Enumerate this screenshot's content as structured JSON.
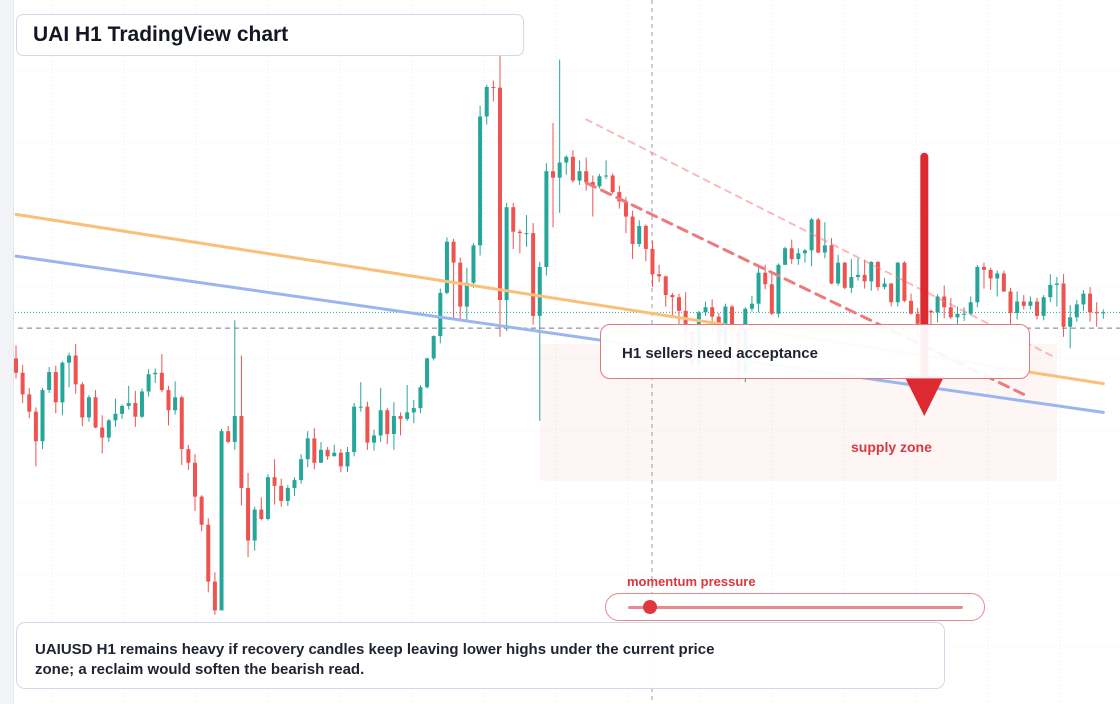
{
  "title": "UAI H1 TradingView chart",
  "annotation": "H1 sellers need acceptance",
  "zone_label": "supply zone",
  "meter": {
    "label": "momentum pressure",
    "level": 0.05
  },
  "caption": "UAIUSD H1 remains heavy if recovery candles keep leaving lower highs under the current price zone; a reclaim would soften the bearish read.",
  "colors": {
    "up": "#26a69a",
    "down": "#ef5350",
    "accent": "#dd2a31",
    "orange_line": "#f8c078",
    "blue_line": "#9bb5f1",
    "trend_dashed": "#ec7a7f"
  },
  "chart_data": {
    "type": "candlestick",
    "symbol": "UAIUSD",
    "timeframe": "H1",
    "candles": [
      {
        "o": 48.0,
        "h": 49.8,
        "c": 46.0,
        "l": 45.2
      },
      {
        "o": 46.0,
        "h": 47.1,
        "c": 43.0,
        "l": 41.8
      },
      {
        "o": 43.0,
        "h": 43.9,
        "c": 40.6,
        "l": 39.7
      },
      {
        "o": 40.6,
        "h": 41.2,
        "c": 36.5,
        "l": 33.0
      },
      {
        "o": 36.5,
        "h": 43.9,
        "c": 43.6,
        "l": 35.4
      },
      {
        "o": 43.6,
        "h": 46.8,
        "c": 46.1,
        "l": 43.2
      },
      {
        "o": 46.1,
        "h": 47.0,
        "c": 41.9,
        "l": 40.4
      },
      {
        "o": 41.9,
        "h": 47.6,
        "c": 47.4,
        "l": 40.1
      },
      {
        "o": 47.4,
        "h": 48.8,
        "c": 48.4,
        "l": 44.0
      },
      {
        "o": 48.4,
        "h": 50.0,
        "c": 44.4,
        "l": 43.1
      },
      {
        "o": 44.4,
        "h": 44.7,
        "c": 39.8,
        "l": 38.6
      },
      {
        "o": 39.8,
        "h": 42.9,
        "c": 42.6,
        "l": 39.2
      },
      {
        "o": 42.6,
        "h": 43.6,
        "c": 38.4,
        "l": 38.3
      },
      {
        "o": 38.4,
        "h": 40.1,
        "c": 37.0,
        "l": 34.8
      },
      {
        "o": 37.0,
        "h": 39.6,
        "c": 39.4,
        "l": 36.4
      },
      {
        "o": 39.4,
        "h": 42.4,
        "c": 40.3,
        "l": 38.5
      },
      {
        "o": 40.3,
        "h": 41.6,
        "c": 41.4,
        "l": 39.6
      },
      {
        "o": 41.4,
        "h": 44.2,
        "c": 41.8,
        "l": 40.9
      },
      {
        "o": 41.8,
        "h": 43.5,
        "c": 39.9,
        "l": 38.5
      },
      {
        "o": 39.9,
        "h": 43.8,
        "c": 43.4,
        "l": 39.7
      },
      {
        "o": 43.4,
        "h": 46.5,
        "c": 45.8,
        "l": 42.7
      },
      {
        "o": 45.8,
        "h": 46.6,
        "c": 46.0,
        "l": 44.6
      },
      {
        "o": 46.0,
        "h": 48.6,
        "c": 43.6,
        "l": 43.3
      },
      {
        "o": 43.6,
        "h": 44.2,
        "c": 40.8,
        "l": 38.7
      },
      {
        "o": 40.8,
        "h": 44.8,
        "c": 42.6,
        "l": 40.2
      },
      {
        "o": 42.6,
        "h": 42.8,
        "c": 35.4,
        "l": 33.2
      },
      {
        "o": 35.4,
        "h": 36.0,
        "c": 33.5,
        "l": 32.5
      },
      {
        "o": 33.5,
        "h": 34.7,
        "c": 28.8,
        "l": 26.8
      },
      {
        "o": 28.8,
        "h": 29.0,
        "c": 24.9,
        "l": 24.0
      },
      {
        "o": 24.9,
        "h": 25.8,
        "c": 17.0,
        "l": 15.5
      },
      {
        "o": 17.0,
        "h": 18.3,
        "c": 13.0,
        "l": 12.4
      },
      {
        "o": 13.0,
        "h": 38.2,
        "c": 37.9,
        "l": 13.0
      },
      {
        "o": 37.9,
        "h": 38.6,
        "c": 36.4,
        "l": 36.2
      },
      {
        "o": 36.4,
        "h": 53.3,
        "c": 40.0,
        "l": 35.3
      },
      {
        "o": 40.0,
        "h": 48.4,
        "c": 30.0,
        "l": 27.6
      },
      {
        "o": 30.0,
        "h": 32.1,
        "c": 22.7,
        "l": 20.4
      },
      {
        "o": 22.7,
        "h": 27.4,
        "c": 27.0,
        "l": 21.3
      },
      {
        "o": 27.0,
        "h": 28.7,
        "c": 25.7,
        "l": 25.5
      },
      {
        "o": 25.7,
        "h": 31.9,
        "c": 31.5,
        "l": 25.5
      },
      {
        "o": 31.5,
        "h": 34.0,
        "c": 30.3,
        "l": 27.7
      },
      {
        "o": 30.3,
        "h": 31.3,
        "c": 28.2,
        "l": 27.4
      },
      {
        "o": 28.2,
        "h": 30.4,
        "c": 30.0,
        "l": 27.5
      },
      {
        "o": 30.0,
        "h": 31.5,
        "c": 31.1,
        "l": 28.9
      },
      {
        "o": 31.1,
        "h": 34.7,
        "c": 34.0,
        "l": 30.6
      },
      {
        "o": 34.0,
        "h": 37.9,
        "c": 36.9,
        "l": 32.9
      },
      {
        "o": 36.9,
        "h": 38.3,
        "c": 33.5,
        "l": 32.6
      },
      {
        "o": 33.5,
        "h": 36.4,
        "c": 35.3,
        "l": 33.5
      },
      {
        "o": 35.3,
        "h": 35.7,
        "c": 34.4,
        "l": 33.9
      },
      {
        "o": 34.4,
        "h": 36.0,
        "c": 34.9,
        "l": 34.8
      },
      {
        "o": 34.9,
        "h": 35.4,
        "c": 33.0,
        "l": 32.2
      },
      {
        "o": 33.0,
        "h": 35.7,
        "c": 35.0,
        "l": 32.2
      },
      {
        "o": 35.0,
        "h": 41.8,
        "c": 41.3,
        "l": 34.4
      },
      {
        "o": 41.3,
        "h": 44.7,
        "c": 41.3,
        "l": 40.6
      },
      {
        "o": 41.3,
        "h": 42.0,
        "c": 36.3,
        "l": 35.3
      },
      {
        "o": 36.3,
        "h": 38.1,
        "c": 37.3,
        "l": 35.2
      },
      {
        "o": 37.3,
        "h": 43.9,
        "c": 40.8,
        "l": 36.4
      },
      {
        "o": 40.8,
        "h": 41.1,
        "c": 37.5,
        "l": 36.1
      },
      {
        "o": 37.5,
        "h": 41.9,
        "c": 40.0,
        "l": 35.3
      },
      {
        "o": 40.0,
        "h": 40.5,
        "c": 39.6,
        "l": 37.3
      },
      {
        "o": 39.6,
        "h": 44.3,
        "c": 40.5,
        "l": 39.3
      },
      {
        "o": 40.5,
        "h": 42.2,
        "c": 41.1,
        "l": 39.0
      },
      {
        "o": 41.1,
        "h": 44.3,
        "c": 44.0,
        "l": 40.4
      },
      {
        "o": 44.0,
        "h": 48.1,
        "c": 48.0,
        "l": 43.8
      },
      {
        "o": 48.0,
        "h": 51.2,
        "c": 51.1,
        "l": 47.7
      },
      {
        "o": 51.1,
        "h": 57.7,
        "c": 57.1,
        "l": 50.1
      },
      {
        "o": 57.1,
        "h": 64.8,
        "c": 64.2,
        "l": 56.9
      },
      {
        "o": 64.2,
        "h": 64.6,
        "c": 61.3,
        "l": 53.4
      },
      {
        "o": 61.3,
        "h": 62.0,
        "c": 55.2,
        "l": 53.3
      },
      {
        "o": 55.2,
        "h": 60.6,
        "c": 58.5,
        "l": 53.1
      },
      {
        "o": 58.5,
        "h": 64.0,
        "c": 63.7,
        "l": 57.8
      },
      {
        "o": 63.7,
        "h": 83.1,
        "c": 81.6,
        "l": 62.3
      },
      {
        "o": 81.6,
        "h": 86.0,
        "c": 85.7,
        "l": 80.5
      },
      {
        "o": 85.7,
        "h": 86.6,
        "c": 85.6,
        "l": 83.7
      },
      {
        "o": 85.6,
        "h": 91.2,
        "c": 56.1,
        "l": 51.0
      },
      {
        "o": 56.1,
        "h": 69.6,
        "c": 69.0,
        "l": 51.8
      },
      {
        "o": 69.0,
        "h": 69.6,
        "c": 65.6,
        "l": 63.2
      },
      {
        "o": 65.6,
        "h": 65.9,
        "c": 65.4,
        "l": 62.6
      },
      {
        "o": 65.4,
        "h": 67.9,
        "c": 65.4,
        "l": 63.5
      },
      {
        "o": 65.4,
        "h": 66.8,
        "c": 53.9,
        "l": 52.7
      },
      {
        "o": 53.9,
        "h": 61.4,
        "c": 60.7,
        "l": 39.3
      },
      {
        "o": 60.7,
        "h": 75.1,
        "c": 74.0,
        "l": 59.5
      },
      {
        "o": 74.0,
        "h": 80.7,
        "c": 73.1,
        "l": 66.2
      },
      {
        "o": 73.1,
        "h": 89.5,
        "c": 75.2,
        "l": 68.2
      },
      {
        "o": 75.2,
        "h": 76.2,
        "c": 76.0,
        "l": 73.5
      },
      {
        "o": 76.0,
        "h": 76.9,
        "c": 72.7,
        "l": 72.4
      },
      {
        "o": 72.7,
        "h": 75.5,
        "c": 74.0,
        "l": 72.1
      },
      {
        "o": 74.0,
        "h": 75.9,
        "c": 72.5,
        "l": 71.3
      },
      {
        "o": 72.5,
        "h": 73.4,
        "c": 71.9,
        "l": 67.7
      },
      {
        "o": 71.9,
        "h": 73.6,
        "c": 73.3,
        "l": 71.6
      },
      {
        "o": 73.3,
        "h": 75.5,
        "c": 73.4,
        "l": 72.9
      },
      {
        "o": 73.4,
        "h": 73.7,
        "c": 71.1,
        "l": 70.8
      },
      {
        "o": 71.1,
        "h": 72.0,
        "c": 69.8,
        "l": 68.8
      },
      {
        "o": 69.8,
        "h": 70.4,
        "c": 67.7,
        "l": 65.4
      },
      {
        "o": 67.7,
        "h": 68.5,
        "c": 63.9,
        "l": 61.8
      },
      {
        "o": 63.9,
        "h": 67.2,
        "c": 66.4,
        "l": 63.5
      },
      {
        "o": 66.4,
        "h": 66.6,
        "c": 63.2,
        "l": 61.5
      },
      {
        "o": 63.2,
        "h": 64.3,
        "c": 59.7,
        "l": 57.9
      },
      {
        "o": 59.7,
        "h": 61.0,
        "c": 59.4,
        "l": 58.6
      },
      {
        "o": 59.4,
        "h": 59.5,
        "c": 56.8,
        "l": 55.2
      },
      {
        "o": 56.8,
        "h": 57.1,
        "c": 56.5,
        "l": 54.0
      },
      {
        "o": 56.5,
        "h": 57.0,
        "c": 54.6,
        "l": 52.8
      },
      {
        "o": 54.6,
        "h": 57.2,
        "c": 51.6,
        "l": 47.5
      },
      {
        "o": 51.6,
        "h": 51.7,
        "c": 47.1,
        "l": 46.6
      },
      {
        "o": 47.1,
        "h": 54.6,
        "c": 54.4,
        "l": 46.3
      },
      {
        "o": 54.4,
        "h": 55.9,
        "c": 55.1,
        "l": 53.9
      },
      {
        "o": 55.1,
        "h": 56.2,
        "c": 53.8,
        "l": 51.4
      },
      {
        "o": 53.8,
        "h": 54.3,
        "c": 50.0,
        "l": 49.7
      },
      {
        "o": 50.0,
        "h": 55.6,
        "c": 55.2,
        "l": 48.5
      },
      {
        "o": 55.2,
        "h": 55.4,
        "c": 51.9,
        "l": 46.4
      },
      {
        "o": 51.9,
        "h": 52.3,
        "c": 46.1,
        "l": 45.1
      },
      {
        "o": 46.1,
        "h": 55.1,
        "c": 54.9,
        "l": 44.7
      },
      {
        "o": 54.9,
        "h": 56.7,
        "c": 55.6,
        "l": 54.5
      },
      {
        "o": 55.6,
        "h": 60.7,
        "c": 59.9,
        "l": 54.4
      },
      {
        "o": 59.9,
        "h": 61.0,
        "c": 58.3,
        "l": 57.6
      },
      {
        "o": 58.3,
        "h": 59.7,
        "c": 54.2,
        "l": 54.0
      },
      {
        "o": 54.2,
        "h": 61.2,
        "c": 61.0,
        "l": 53.7
      },
      {
        "o": 61.0,
        "h": 63.5,
        "c": 63.3,
        "l": 61.0
      },
      {
        "o": 63.3,
        "h": 64.5,
        "c": 61.8,
        "l": 61.1
      },
      {
        "o": 61.8,
        "h": 63.3,
        "c": 62.6,
        "l": 61.0
      },
      {
        "o": 62.6,
        "h": 63.2,
        "c": 63.0,
        "l": 61.3
      },
      {
        "o": 63.0,
        "h": 67.5,
        "c": 67.3,
        "l": 60.8
      },
      {
        "o": 67.3,
        "h": 67.5,
        "c": 62.7,
        "l": 62.6
      },
      {
        "o": 62.7,
        "h": 66.9,
        "c": 63.7,
        "l": 61.9
      },
      {
        "o": 63.7,
        "h": 64.7,
        "c": 58.4,
        "l": 58.3
      },
      {
        "o": 58.4,
        "h": 62.4,
        "c": 61.3,
        "l": 58.1
      },
      {
        "o": 61.3,
        "h": 61.4,
        "c": 57.8,
        "l": 57.6
      },
      {
        "o": 57.8,
        "h": 61.8,
        "c": 59.3,
        "l": 57.1
      },
      {
        "o": 59.3,
        "h": 61.9,
        "c": 59.6,
        "l": 58.8
      },
      {
        "o": 59.6,
        "h": 61.7,
        "c": 58.7,
        "l": 57.7
      },
      {
        "o": 58.7,
        "h": 61.5,
        "c": 61.4,
        "l": 57.4
      },
      {
        "o": 61.4,
        "h": 61.5,
        "c": 57.9,
        "l": 57.4
      },
      {
        "o": 57.9,
        "h": 59.2,
        "c": 58.4,
        "l": 57.6
      },
      {
        "o": 58.4,
        "h": 58.5,
        "c": 55.8,
        "l": 55.2
      },
      {
        "o": 55.8,
        "h": 61.4,
        "c": 61.3,
        "l": 55.2
      },
      {
        "o": 61.3,
        "h": 61.5,
        "c": 56.0,
        "l": 55.8
      },
      {
        "o": 56.0,
        "h": 57.0,
        "c": 54.2,
        "l": 54.1
      },
      {
        "o": 54.2,
        "h": 55.0,
        "c": 52.8,
        "l": 51.1
      },
      {
        "o": 52.8,
        "h": 55.6,
        "c": 54.6,
        "l": 52.7
      },
      {
        "o": 54.6,
        "h": 54.8,
        "c": 54.4,
        "l": 52.2
      },
      {
        "o": 54.4,
        "h": 56.9,
        "c": 56.6,
        "l": 53.0
      },
      {
        "o": 56.6,
        "h": 58.1,
        "c": 55.1,
        "l": 53.6
      },
      {
        "o": 55.1,
        "h": 56.4,
        "c": 53.7,
        "l": 53.5
      },
      {
        "o": 53.7,
        "h": 55.2,
        "c": 54.2,
        "l": 52.6
      },
      {
        "o": 54.2,
        "h": 55.1,
        "c": 54.2,
        "l": 53.2
      },
      {
        "o": 54.2,
        "h": 56.6,
        "c": 55.8,
        "l": 54.0
      },
      {
        "o": 55.8,
        "h": 61.0,
        "c": 60.7,
        "l": 55.1
      },
      {
        "o": 60.7,
        "h": 61.3,
        "c": 60.3,
        "l": 57.7
      },
      {
        "o": 60.3,
        "h": 60.6,
        "c": 59.1,
        "l": 57.5
      },
      {
        "o": 59.1,
        "h": 60.2,
        "c": 59.8,
        "l": 56.6
      },
      {
        "o": 59.8,
        "h": 60.2,
        "c": 57.3,
        "l": 57.2
      },
      {
        "o": 57.3,
        "h": 57.8,
        "c": 54.3,
        "l": 52.8
      },
      {
        "o": 54.3,
        "h": 57.3,
        "c": 55.9,
        "l": 53.4
      },
      {
        "o": 55.9,
        "h": 56.8,
        "c": 55.3,
        "l": 54.8
      },
      {
        "o": 55.3,
        "h": 56.6,
        "c": 55.9,
        "l": 54.8
      },
      {
        "o": 55.9,
        "h": 56.4,
        "c": 53.9,
        "l": 53.4
      },
      {
        "o": 53.9,
        "h": 56.8,
        "c": 56.5,
        "l": 53.3
      },
      {
        "o": 56.5,
        "h": 59.7,
        "c": 58.2,
        "l": 55.8
      },
      {
        "o": 58.2,
        "h": 59.3,
        "c": 58.4,
        "l": 55.2
      },
      {
        "o": 58.4,
        "h": 59.7,
        "c": 52.4,
        "l": 51.0
      },
      {
        "o": 52.4,
        "h": 55.4,
        "c": 53.7,
        "l": 49.4
      },
      {
        "o": 53.7,
        "h": 56.1,
        "c": 55.5,
        "l": 53.1
      },
      {
        "o": 55.5,
        "h": 57.5,
        "c": 57.0,
        "l": 54.6
      },
      {
        "o": 57.0,
        "h": 57.9,
        "c": 54.4,
        "l": 53.1
      },
      {
        "o": 54.4,
        "h": 55.8,
        "c": 54.3,
        "l": 52.4
      },
      {
        "o": 54.3,
        "h": 54.8,
        "c": 54.4,
        "l": 53.5
      }
    ],
    "overlays": [
      {
        "label": "orange",
        "from": {
          "index": 0,
          "price": 68.0
        },
        "to": {
          "index": 164,
          "price": 44.5
        }
      },
      {
        "label": "blue",
        "from": {
          "index": 0,
          "price": 62.2
        },
        "to": {
          "index": 164,
          "price": 40.5
        }
      },
      {
        "label": "descending trendline",
        "style": "dashed",
        "from": {
          "index": 86,
          "price": 72.4
        },
        "to": {
          "index": 152,
          "price": 43.0
        }
      },
      {
        "label": "descending trendline faint",
        "style": "dashed",
        "from": {
          "index": 86,
          "price": 81.2
        },
        "to": {
          "index": 157,
          "price": 48.0
        }
      }
    ],
    "current_price": 54.4,
    "reference_price": 52.2,
    "zone": {
      "from_index": 79,
      "to_index": 157,
      "price_from": 50.0,
      "price_to": 31.0
    },
    "signal_arrow": {
      "index": 137,
      "from_price": 76.0,
      "to_price": 40.0,
      "direction": "down"
    },
    "grid": true,
    "legend": "none"
  }
}
